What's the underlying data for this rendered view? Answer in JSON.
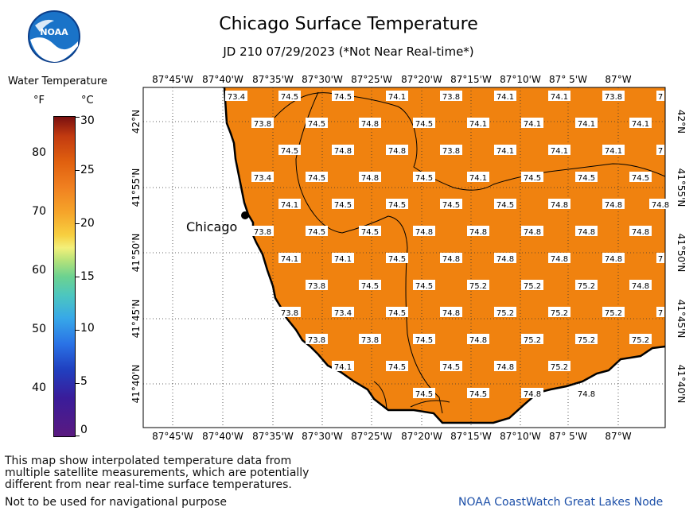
{
  "header": {
    "title": "Chicago Surface Temperature",
    "subtitle": "JD 210 07/29/2023 (*Not Near Real-time*)"
  },
  "logo": {
    "text": "NOAA",
    "icon": "noaa-logo-icon"
  },
  "legend": {
    "title": "Water Temperature",
    "unit_f": "°F",
    "unit_c": "°C",
    "f_ticks": [
      "80",
      "70",
      "60",
      "50",
      "40"
    ],
    "c_ticks": [
      "30",
      "25",
      "20",
      "15",
      "10",
      "5",
      "0"
    ]
  },
  "map": {
    "city_label": "Chicago",
    "lon_labels": [
      "87°45'W",
      "87°40'W",
      "87°35'W",
      "87°30'W",
      "87°25'W",
      "87°20'W",
      "87°15'W",
      "87°10'W",
      "87° 5'W",
      "87°W"
    ],
    "lat_labels": [
      "42°N",
      "41°55'N",
      "41°50'N",
      "41°45'N",
      "41°40'N"
    ],
    "lake_color": "#f0820f",
    "land_color": "#ffffff",
    "temperature_labels": [
      [
        "73.4",
        "74.5",
        "74.5",
        "74.1",
        "73.8",
        "74.1",
        "74.1",
        "73.8",
        "7"
      ],
      [
        "73.8",
        "74.5",
        "74.8",
        "74.5",
        "74.1",
        "74.1",
        "74.1",
        "74.1"
      ],
      [
        "74.5",
        "74.8",
        "74.8",
        "73.8",
        "74.1",
        "74.1",
        "74.1",
        "7"
      ],
      [
        "73.4",
        "74.5",
        "74.8",
        "74.5",
        "74.1",
        "74.5",
        "74.5",
        "74.5"
      ],
      [
        "74.1",
        "74.5",
        "74.5",
        "74.5",
        "74.5",
        "74.8",
        "74.8",
        "74.8"
      ],
      [
        "73.8",
        "74.5",
        "74.5",
        "74.8",
        "74.8",
        "74.8",
        "74.8",
        "74.8"
      ],
      [
        "74.1",
        "74.1",
        "74.5",
        "74.8",
        "74.8",
        "74.8",
        "74.8",
        "7"
      ],
      [
        "73.8",
        "74.5",
        "74.5",
        "75.2",
        "75.2",
        "75.2",
        "74.8"
      ],
      [
        "73.8",
        "73.4",
        "74.5",
        "74.8",
        "75.2",
        "75.2",
        "75.2",
        "7"
      ],
      [
        "73.8",
        "73.8",
        "74.5",
        "74.8",
        "75.2",
        "75.2",
        "75.2"
      ],
      [
        "74.1",
        "74.5",
        "74.5",
        "74.8",
        "75.2"
      ],
      [
        "74.5",
        "74.5",
        "74.8",
        "74.8"
      ]
    ]
  },
  "footer": {
    "description_lines": [
      "This map show interpolated temperature data from",
      "multiple satellite measurements, which are potentially",
      "different from near real-time surface temperatures."
    ],
    "navigation_note": "Not to be used for navigational purpose",
    "credit": "NOAA CoastWatch Great Lakes Node"
  }
}
